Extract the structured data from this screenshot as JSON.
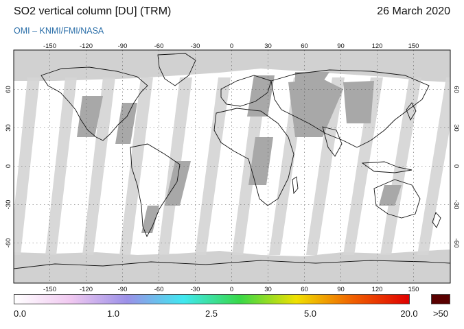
{
  "header": {
    "title": "SO2 vertical column [DU] (TRM)",
    "date": "26 March 2020",
    "credit": "OMI  –  KNMI/FMI/NASA"
  },
  "map": {
    "lon_ticks": [
      "-150",
      "-120",
      "-90",
      "-60",
      "-30",
      "0",
      "30",
      "60",
      "90",
      "120",
      "150"
    ],
    "lat_ticks": [
      "60",
      "30",
      "0",
      "-30",
      "-60"
    ],
    "colors": {
      "ocean_nodata": "#ffffff",
      "no_coverage": "#d1d1d1",
      "swath_gap": "#a6a6a6",
      "coast": "#111111"
    }
  },
  "colorbar": {
    "labels": [
      "0.0",
      "1.0",
      "2.5",
      "5.0",
      "20.0",
      ">50"
    ],
    "stops": [
      "#ffffff",
      "#f0c8f0",
      "#9b90e8",
      "#40e8f0",
      "#38d848",
      "#f0e000",
      "#f06000",
      "#e00000"
    ],
    "over_color": "#5a0000"
  }
}
